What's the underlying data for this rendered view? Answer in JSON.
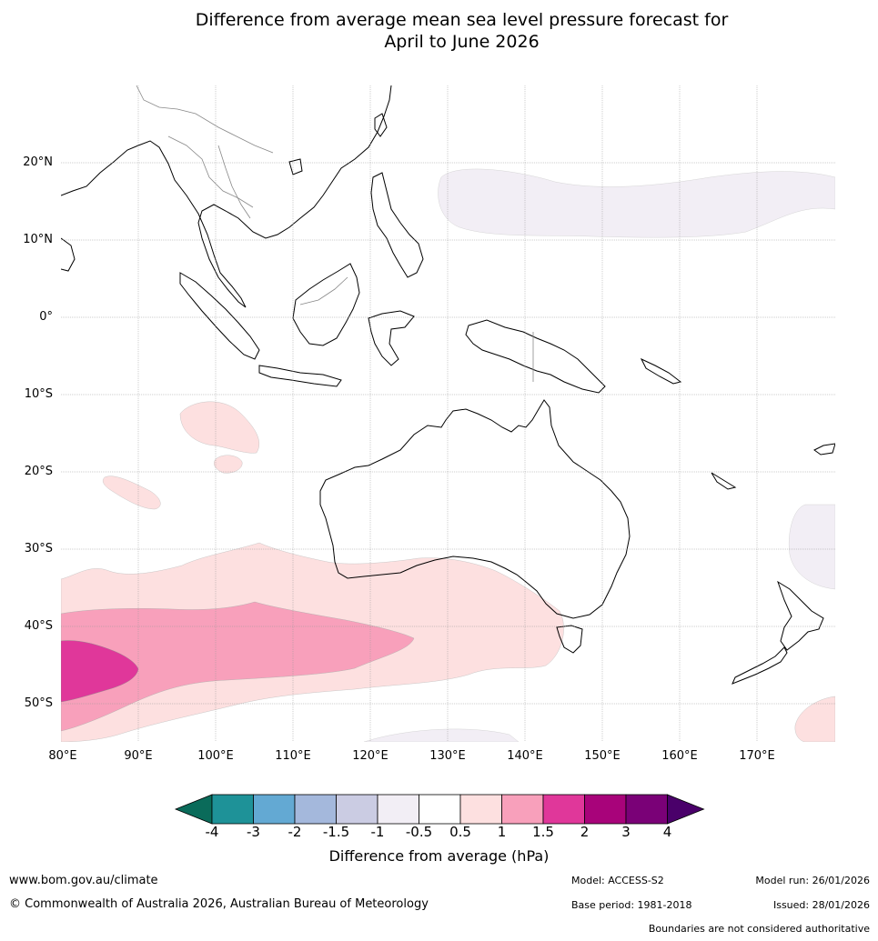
{
  "title_line1": "Difference from average mean sea level pressure forecast for",
  "title_line2": "April to June 2026",
  "map": {
    "lat_labels": [
      "20°N",
      "10°N",
      "0°",
      "10°S",
      "20°S",
      "30°S",
      "40°S",
      "50°S"
    ],
    "lon_labels": [
      "80°E",
      "90°E",
      "100°E",
      "110°E",
      "120°E",
      "130°E",
      "140°E",
      "150°E",
      "160°E",
      "170°E"
    ],
    "colors": {
      "neg_05": "#f2eef5",
      "pos_05": "#fde0e0",
      "pos_1": "#f8a0bb",
      "pos_15": "#e0379a"
    }
  },
  "colorbar": {
    "label": "Difference from average (hPa)",
    "ticks": [
      "-4",
      "-3",
      "-2",
      "-1.5",
      "-1",
      "-0.5",
      "0.5",
      "1",
      "1.5",
      "2",
      "3",
      "4"
    ],
    "colors": [
      "#0a6b5a",
      "#1e9298",
      "#63a9d3",
      "#a4b8dc",
      "#cbcce3",
      "#f2eef5",
      "#ffffff",
      "#fde0e0",
      "#f8a0bb",
      "#e0379a",
      "#a8037a",
      "#7a0177",
      "#4a006a"
    ]
  },
  "footer": {
    "url": "www.bom.gov.au/climate",
    "copyright": "© Commonwealth of Australia 2026, Australian Bureau of Meteorology",
    "model": "Model: ACCESS-S2",
    "base_period": "Base period: 1981-2018",
    "model_run": "Model run: 26/01/2026",
    "issued": "Issued: 28/01/2026",
    "disclaimer": "Boundaries are not considered authoritative"
  }
}
